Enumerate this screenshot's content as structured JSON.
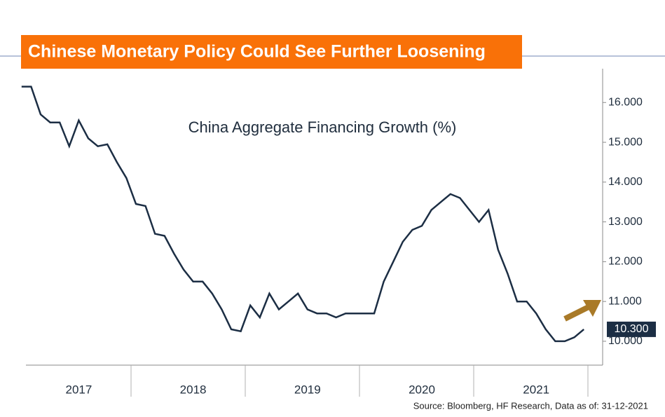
{
  "chart_data": {
    "type": "line",
    "title": "Chinese Monetary Policy Could See Further Loosening",
    "subtitle": "China Aggregate Financing Growth (%)",
    "source": "Source: Bloomberg, HF Research, Data as of: 31-12-2021",
    "categories": [
      null,
      null,
      null,
      null,
      null,
      null,
      "2017",
      null,
      null,
      null,
      null,
      null,
      null,
      null,
      null,
      null,
      null,
      null,
      "2018",
      null,
      null,
      null,
      null,
      null,
      null,
      null,
      null,
      null,
      null,
      null,
      "2019",
      null,
      null,
      null,
      null,
      null,
      null,
      null,
      null,
      null,
      null,
      null,
      "2020",
      null,
      null,
      null,
      null,
      null,
      null,
      null,
      null,
      null,
      null,
      null,
      "2021",
      null,
      null,
      null,
      null,
      null
    ],
    "series": [
      {
        "name": "China Aggregate Financing Growth",
        "color": "#1c2e44",
        "values": [
          16.4,
          16.4,
          15.7,
          15.5,
          15.5,
          14.9,
          15.55,
          15.1,
          14.9,
          14.95,
          14.5,
          14.1,
          13.45,
          13.4,
          12.7,
          12.65,
          12.2,
          11.8,
          11.5,
          11.5,
          11.2,
          10.8,
          10.3,
          10.25,
          10.9,
          10.6,
          11.2,
          10.8,
          11.0,
          11.2,
          10.8,
          10.7,
          10.7,
          10.6,
          10.7,
          10.7,
          10.7,
          10.7,
          11.5,
          12.0,
          12.5,
          12.8,
          12.9,
          13.3,
          13.5,
          13.7,
          13.6,
          13.3,
          13.0,
          13.3,
          12.3,
          11.7,
          11.0,
          11.0,
          10.7,
          10.3,
          10.0,
          10.0,
          10.1,
          10.3
        ],
        "value_labels": [
          null,
          null,
          null,
          null,
          null,
          null,
          null,
          null,
          null,
          null,
          null,
          null,
          null,
          null,
          null,
          null,
          null,
          null,
          null,
          null,
          null,
          null,
          null,
          null,
          null,
          null,
          null,
          null,
          null,
          null,
          null,
          null,
          null,
          null,
          null,
          null,
          null,
          null,
          null,
          null,
          null,
          null,
          null,
          null,
          null,
          null,
          null,
          null,
          null,
          null,
          null,
          null,
          null,
          null,
          null,
          null,
          null,
          null,
          null,
          "10.300"
        ]
      }
    ],
    "ylim": [
      9.4,
      16.85
    ],
    "yticks": [
      {
        "value": 10,
        "label": "10.000"
      },
      {
        "value": 11,
        "label": "11.000"
      },
      {
        "value": 12,
        "label": "12.000"
      },
      {
        "value": 13,
        "label": "13.000"
      },
      {
        "value": 14,
        "label": "14.000"
      },
      {
        "value": 15,
        "label": "15.000"
      },
      {
        "value": 16,
        "label": "16.000"
      }
    ],
    "grid": false
  }
}
